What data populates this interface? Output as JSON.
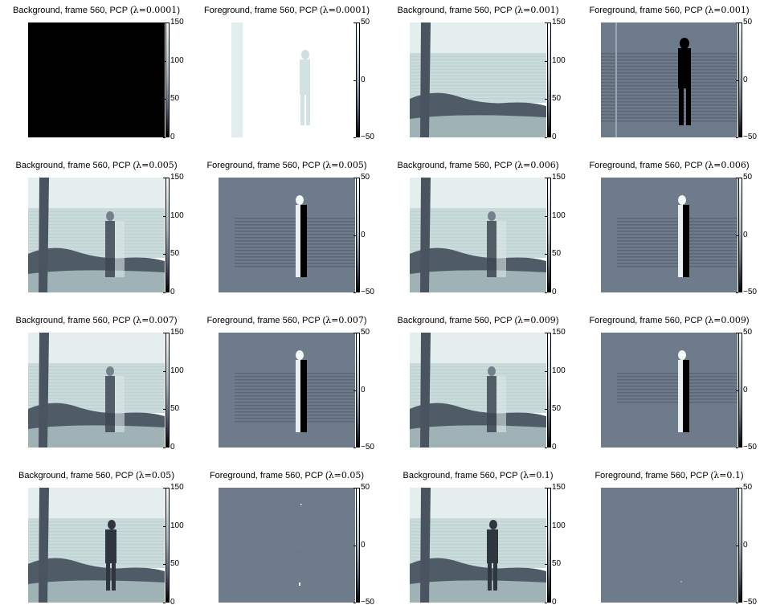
{
  "panels": [
    {
      "title_prefix": "Background, frame 560, PCP (",
      "lambda": "λ=0.0001",
      "title_suffix": ")",
      "kind": "bg",
      "variant": "black",
      "colorbar": {
        "ticks": [
          "150",
          "100",
          "50",
          "0"
        ]
      }
    },
    {
      "title_prefix": "Foreground, frame 560, PCP (",
      "lambda": "λ=0.0001",
      "title_suffix": ")",
      "kind": "fg",
      "variant": "ghost",
      "colorbar": {
        "ticks": [
          "50",
          "0",
          "−50"
        ]
      }
    },
    {
      "title_prefix": "Background, frame 560, PCP (",
      "lambda": "λ=0.001",
      "title_suffix": ")",
      "kind": "bg",
      "variant": "empty",
      "colorbar": {
        "ticks": [
          "150",
          "100",
          "50",
          "0"
        ]
      }
    },
    {
      "title_prefix": "Foreground, frame 560, PCP (",
      "lambda": "λ=0.001",
      "title_suffix": ")",
      "kind": "fg",
      "variant": "strong",
      "colorbar": {
        "ticks": [
          "50",
          "0",
          "−50"
        ]
      }
    },
    {
      "title_prefix": "Background, frame 560, PCP (",
      "lambda": "λ=0.005",
      "title_suffix": ")",
      "kind": "bg",
      "variant": "faint",
      "colorbar": {
        "ticks": [
          "150",
          "100",
          "50",
          "0"
        ]
      }
    },
    {
      "title_prefix": "Foreground, frame 560, PCP (",
      "lambda": "λ=0.005",
      "title_suffix": ")",
      "kind": "fg",
      "variant": "medium",
      "colorbar": {
        "ticks": [
          "50",
          "0",
          "−50"
        ]
      }
    },
    {
      "title_prefix": "Background, frame 560, PCP (",
      "lambda": "λ=0.006",
      "title_suffix": ")",
      "kind": "bg",
      "variant": "faint",
      "colorbar": {
        "ticks": [
          "150",
          "100",
          "50",
          "0"
        ]
      }
    },
    {
      "title_prefix": "Foreground, frame 560, PCP (",
      "lambda": "λ=0.006",
      "title_suffix": ")",
      "kind": "fg",
      "variant": "medium",
      "colorbar": {
        "ticks": [
          "50",
          "0",
          "−50"
        ]
      }
    },
    {
      "title_prefix": "Background, frame 560, PCP (",
      "lambda": "λ=0.007",
      "title_suffix": ")",
      "kind": "bg",
      "variant": "faint",
      "colorbar": {
        "ticks": [
          "150",
          "100",
          "50",
          "0"
        ]
      }
    },
    {
      "title_prefix": "Foreground, frame 560, PCP (",
      "lambda": "λ=0.007",
      "title_suffix": ")",
      "kind": "fg",
      "variant": "medium",
      "colorbar": {
        "ticks": [
          "50",
          "0",
          "−50"
        ]
      }
    },
    {
      "title_prefix": "Background, frame 560, PCP (",
      "lambda": "λ=0.009",
      "title_suffix": ")",
      "kind": "bg",
      "variant": "faint",
      "colorbar": {
        "ticks": [
          "150",
          "100",
          "50",
          "0"
        ]
      }
    },
    {
      "title_prefix": "Foreground, frame 560, PCP (",
      "lambda": "λ=0.009",
      "title_suffix": ")",
      "kind": "fg",
      "variant": "light",
      "colorbar": {
        "ticks": [
          "50",
          "0",
          "−50"
        ]
      }
    },
    {
      "title_prefix": "Background, frame 560, PCP (",
      "lambda": "λ=0.05",
      "title_suffix": ")",
      "kind": "bg",
      "variant": "full",
      "colorbar": {
        "ticks": [
          "150",
          "100",
          "50",
          "0"
        ]
      }
    },
    {
      "title_prefix": "Foreground, frame 560, PCP (",
      "lambda": "λ=0.05",
      "title_suffix": ")",
      "kind": "fg",
      "variant": "flat-dots",
      "colorbar": {
        "ticks": [
          "50",
          "0",
          "−50"
        ]
      }
    },
    {
      "title_prefix": "Background, frame 560, PCP (",
      "lambda": "λ=0.1",
      "title_suffix": ")",
      "kind": "bg",
      "variant": "full",
      "colorbar": {
        "ticks": [
          "150",
          "100",
          "50",
          "0"
        ]
      }
    },
    {
      "title_prefix": "Foreground, frame 560, PCP (",
      "lambda": "λ=0.1",
      "title_suffix": ")",
      "kind": "fg",
      "variant": "flat",
      "colorbar": {
        "ticks": [
          "50",
          "0",
          "−50"
        ]
      }
    }
  ],
  "colors": {
    "sky": "#e4eeee",
    "sea": "#c9dada",
    "shore": "#4f5b66",
    "beach": "#9fb3b6",
    "tree": "#4a5461",
    "person": "#2f3640",
    "fg_gray": "#6e7b8a",
    "bone_top": "#f4fbfb",
    "bone_bottom": "#000000"
  }
}
